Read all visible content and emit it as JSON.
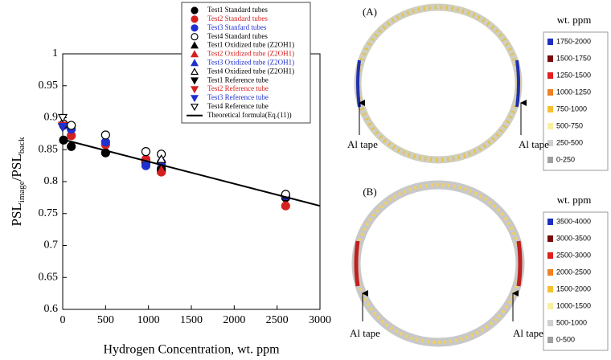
{
  "chart_data": {
    "type": "scatter",
    "xlabel": "Hydrogen Concentration, wt. ppm",
    "ylabel": {
      "main": "PSL",
      "sub": "image",
      "main2": "/PSL",
      "sub2": "back"
    },
    "xlim": [
      0,
      3000
    ],
    "xticks": [
      0,
      500,
      1000,
      1500,
      2000,
      2500,
      3000
    ],
    "ylim": [
      0.6,
      1
    ],
    "yticks": [
      0.6,
      0.65,
      0.7,
      0.75,
      0.8,
      0.85,
      0.9,
      0.95,
      1
    ],
    "series": [
      {
        "name": "Test1 Standard tubes",
        "color": "#000000",
        "marker": "circle",
        "filled": true,
        "x": [
          10,
          100,
          500,
          970,
          1150,
          2600
        ],
        "values": [
          0.865,
          0.855,
          0.845,
          0.83,
          0.82,
          0.775
        ]
      },
      {
        "name": "Test2 Standard tubes",
        "color": "#d62020",
        "marker": "circle",
        "filled": true,
        "x": [
          10,
          100,
          500,
          970,
          1150,
          2600
        ],
        "values": [
          0.89,
          0.872,
          0.858,
          0.835,
          0.815,
          0.762
        ]
      },
      {
        "name": "Test3 Stanfard tubes",
        "color": "#2030d0",
        "marker": "circle",
        "filled": true,
        "x": [
          10,
          100,
          500,
          970,
          1150,
          2600
        ],
        "values": [
          0.888,
          0.882,
          0.862,
          0.825,
          0.83,
          0.778
        ]
      },
      {
        "name": "Test4 Standard tubes",
        "color": "#000000",
        "marker": "circle",
        "filled": false,
        "x": [
          10,
          100,
          500,
          970,
          1150,
          2600
        ],
        "values": [
          0.89,
          0.888,
          0.873,
          0.847,
          0.843,
          0.78
        ]
      },
      {
        "name": "Test1 Oxidized tube (Z2OH1)",
        "color": "#000000",
        "marker": "triangle-up",
        "filled": true,
        "x": [
          1150
        ],
        "values": [
          0.822
        ]
      },
      {
        "name": "Test2 Oxidized tube (Z2OH1)",
        "color": "#d62020",
        "marker": "triangle-up",
        "filled": true,
        "x": [
          1150
        ],
        "values": [
          0.818
        ]
      },
      {
        "name": "Test3 Oxidized tube (Z2OH1)",
        "color": "#2030d0",
        "marker": "triangle-up",
        "filled": true,
        "x": [
          1150
        ],
        "values": [
          0.832
        ]
      },
      {
        "name": "Test4 Oxidized tube (Z2OH1)",
        "color": "#000000",
        "marker": "triangle-up",
        "filled": false,
        "x": [
          1150
        ],
        "values": [
          0.835
        ]
      },
      {
        "name": "Test1 Reference tube",
        "color": "#000000",
        "marker": "triangle-down",
        "filled": true,
        "x": [
          0
        ],
        "values": [
          0.885
        ]
      },
      {
        "name": "Test2 Reference tube",
        "color": "#d62020",
        "marker": "triangle-down",
        "filled": true,
        "x": [
          0
        ],
        "values": [
          0.888
        ]
      },
      {
        "name": "Test3 Reference tube",
        "color": "#2030d0",
        "marker": "triangle-down",
        "filled": true,
        "x": [
          0
        ],
        "values": [
          0.886
        ]
      },
      {
        "name": "Test4 Reference tube",
        "color": "#000000",
        "marker": "triangle-down",
        "filled": false,
        "x": [
          0
        ],
        "values": [
          0.9
        ]
      },
      {
        "name": "Theoretical formula(Eq.(11))",
        "color": "#000000",
        "marker": "line",
        "filled": true,
        "x": [
          0,
          3000
        ],
        "values": [
          0.866,
          0.762
        ]
      }
    ]
  },
  "panels": [
    {
      "label": "(A)",
      "unit": "wt. ppm",
      "annotations": [
        "Al tape",
        "Al tape"
      ],
      "scale": [
        {
          "range": "1750-2000",
          "color": "#1c2fc0"
        },
        {
          "range": "1500-1750",
          "color": "#7a0a0a"
        },
        {
          "range": "1250-1500",
          "color": "#e02020"
        },
        {
          "range": "1000-1250",
          "color": "#f08020"
        },
        {
          "range": "750-1000",
          "color": "#f5c030"
        },
        {
          "range": "500-750",
          "color": "#f8f0a0"
        },
        {
          "range": "250-500",
          "color": "#d0d0d0"
        },
        {
          "range": "0-250",
          "color": "#a0a0a0"
        }
      ]
    },
    {
      "label": "(B)",
      "unit": "wt. ppm",
      "annotations": [
        "Al tape",
        "Al tape"
      ],
      "scale": [
        {
          "range": "3500-4000",
          "color": "#1c2fc0"
        },
        {
          "range": "3000-3500",
          "color": "#7a0a0a"
        },
        {
          "range": "2500-3000",
          "color": "#e02020"
        },
        {
          "range": "2000-2500",
          "color": "#f08020"
        },
        {
          "range": "1500-2000",
          "color": "#f5c030"
        },
        {
          "range": "1000-1500",
          "color": "#f8f0a0"
        },
        {
          "range": "500-1000",
          "color": "#d0d0d0"
        },
        {
          "range": "0-500",
          "color": "#a0a0a0"
        }
      ]
    }
  ]
}
